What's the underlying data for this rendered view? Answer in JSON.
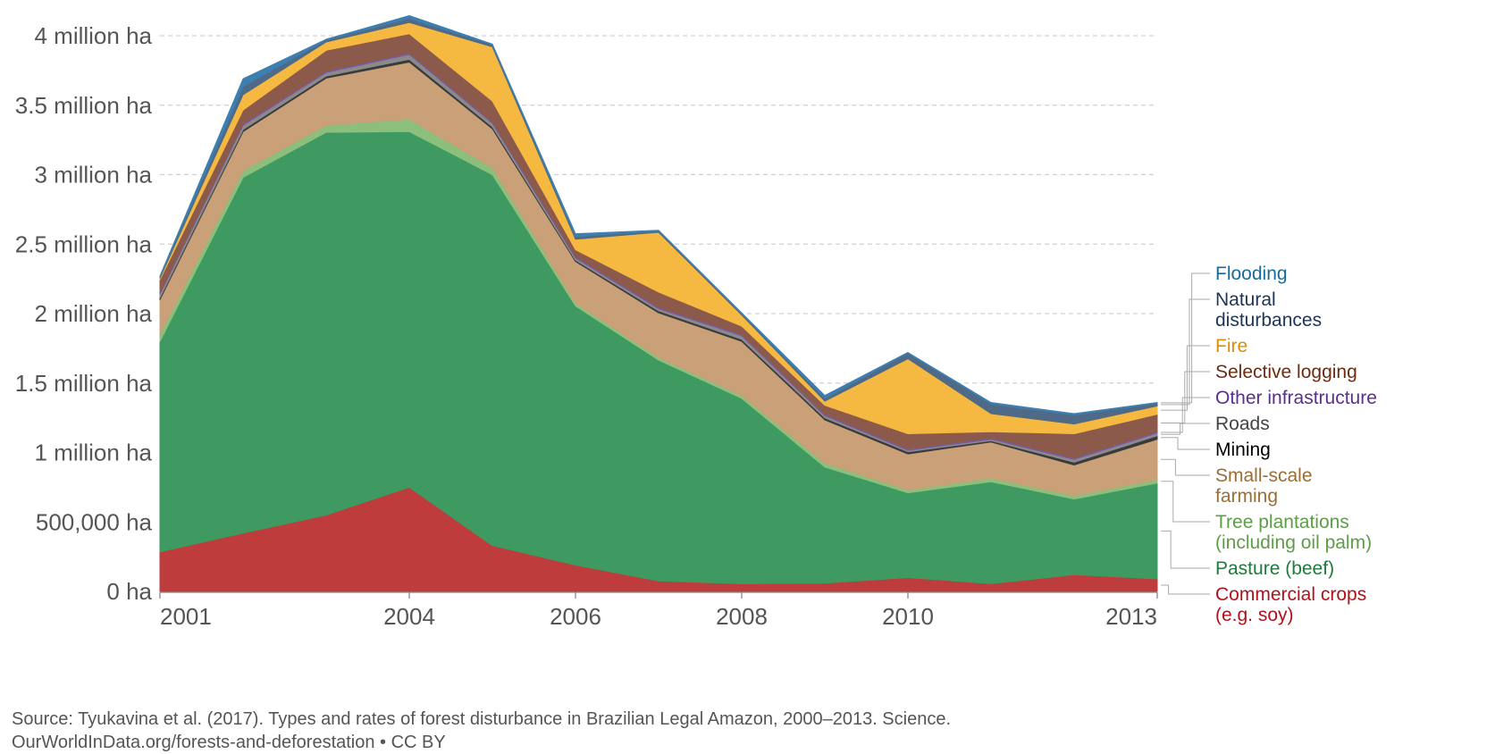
{
  "chart_data": {
    "type": "area",
    "stacked": true,
    "title": "",
    "xlabel": "",
    "ylabel": "",
    "x": [
      2001,
      2002,
      2003,
      2004,
      2005,
      2006,
      2007,
      2008,
      2009,
      2010,
      2011,
      2012,
      2013
    ],
    "xticks": [
      {
        "value": 2001,
        "label": "2001"
      },
      {
        "value": 2004,
        "label": "2004"
      },
      {
        "value": 2006,
        "label": "2006"
      },
      {
        "value": 2008,
        "label": "2008"
      },
      {
        "value": 2010,
        "label": "2010"
      },
      {
        "value": 2013,
        "label": "2013"
      }
    ],
    "xlim": [
      2001,
      2013
    ],
    "ylim": [
      0,
      4000000
    ],
    "yticks": [
      {
        "value": 0,
        "label": "0 ha"
      },
      {
        "value": 500000,
        "label": "500,000 ha"
      },
      {
        "value": 1000000,
        "label": "1 million ha"
      },
      {
        "value": 1500000,
        "label": "1.5 million ha"
      },
      {
        "value": 2000000,
        "label": "2 million ha"
      },
      {
        "value": 2500000,
        "label": "2.5 million ha"
      },
      {
        "value": 3000000,
        "label": "3 million ha"
      },
      {
        "value": 3500000,
        "label": "3.5 million ha"
      },
      {
        "value": 4000000,
        "label": "4 million ha"
      }
    ],
    "grid": true,
    "legend_position": "right",
    "series": [
      {
        "name": "Commercial crops (e.g. soy)",
        "label_lines": [
          "Commercial crops",
          "(e.g. soy)"
        ],
        "color": "#be3c3c",
        "label_color": "#b0121c",
        "values": [
          285000,
          420000,
          550000,
          750000,
          330000,
          190000,
          75000,
          55000,
          60000,
          100000,
          55000,
          120000,
          90000
        ]
      },
      {
        "name": "Pasture (beef)",
        "label_lines": [
          "Pasture (beef)"
        ],
        "color": "#3f9a62",
        "label_color": "#1f7a3b",
        "values": [
          1515000,
          2560000,
          2755000,
          2560000,
          2670000,
          1865000,
          1590000,
          1335000,
          835000,
          610000,
          735000,
          545000,
          690000
        ]
      },
      {
        "name": "Tree plantations (including oil palm)",
        "label_lines": [
          "Tree plantations",
          "(including oil palm)"
        ],
        "color": "#8cbf7c",
        "label_color": "#5c9e46",
        "values": [
          50000,
          50000,
          50000,
          90000,
          50000,
          20000,
          20000,
          20000,
          30000,
          20000,
          25000,
          25000,
          25000
        ]
      },
      {
        "name": "Small-scale farming",
        "label_lines": [
          "Small-scale",
          "farming"
        ],
        "color": "#c9a077",
        "label_color": "#9a6e34",
        "values": [
          250000,
          280000,
          340000,
          410000,
          280000,
          300000,
          320000,
          390000,
          310000,
          260000,
          260000,
          220000,
          290000
        ]
      },
      {
        "name": "Mining",
        "label_lines": [
          "Mining"
        ],
        "color": "#3a3a3a",
        "label_color": "#000000",
        "values": [
          15000,
          15000,
          15000,
          20000,
          15000,
          10000,
          15000,
          15000,
          15000,
          15000,
          10000,
          20000,
          25000
        ]
      },
      {
        "name": "Roads",
        "label_lines": [
          "Roads"
        ],
        "color": "#8a8a8a",
        "label_color": "#444444",
        "values": [
          25000,
          30000,
          25000,
          35000,
          25000,
          15000,
          15000,
          25000,
          15000,
          10000,
          10000,
          20000,
          20000
        ]
      },
      {
        "name": "Other infrastructure",
        "label_lines": [
          "Other infrastructure"
        ],
        "color": "#7b5aa6",
        "label_color": "#5b2e91",
        "values": [
          10000,
          10000,
          10000,
          10000,
          10000,
          10000,
          10000,
          10000,
          10000,
          10000,
          10000,
          10000,
          10000
        ]
      },
      {
        "name": "Selective logging",
        "label_lines": [
          "Selective logging"
        ],
        "color": "#8c5a4a",
        "label_color": "#6b2c12",
        "values": [
          95000,
          100000,
          150000,
          140000,
          150000,
          50000,
          110000,
          60000,
          65000,
          110000,
          45000,
          175000,
          125000
        ]
      },
      {
        "name": "Fire",
        "label_lines": [
          "Fire"
        ],
        "color": "#f5b841",
        "label_color": "#e08e00",
        "values": [
          10000,
          110000,
          60000,
          80000,
          390000,
          75000,
          430000,
          80000,
          30000,
          540000,
          130000,
          70000,
          60000
        ]
      },
      {
        "name": "Natural disturbances",
        "label_lines": [
          "Natural",
          "disturbances"
        ],
        "color": "#4f6a86",
        "label_color": "#1d3557",
        "values": [
          10000,
          60000,
          15000,
          30000,
          15000,
          20000,
          10000,
          10000,
          20000,
          40000,
          70000,
          65000,
          20000
        ]
      },
      {
        "name": "Flooding",
        "label_lines": [
          "Flooding"
        ],
        "color": "#3c7fb0",
        "label_color": "#1a6a99",
        "values": [
          5000,
          55000,
          5000,
          20000,
          5000,
          20000,
          5000,
          5000,
          20000,
          5000,
          10000,
          10000,
          5000
        ]
      }
    ]
  },
  "footer": {
    "source": "Source: Tyukavina et al. (2017). Types and rates of forest disturbance in Brazilian Legal Amazon, 2000–2013. Science.",
    "credit": "OurWorldInData.org/forests-and-deforestation • CC BY"
  }
}
